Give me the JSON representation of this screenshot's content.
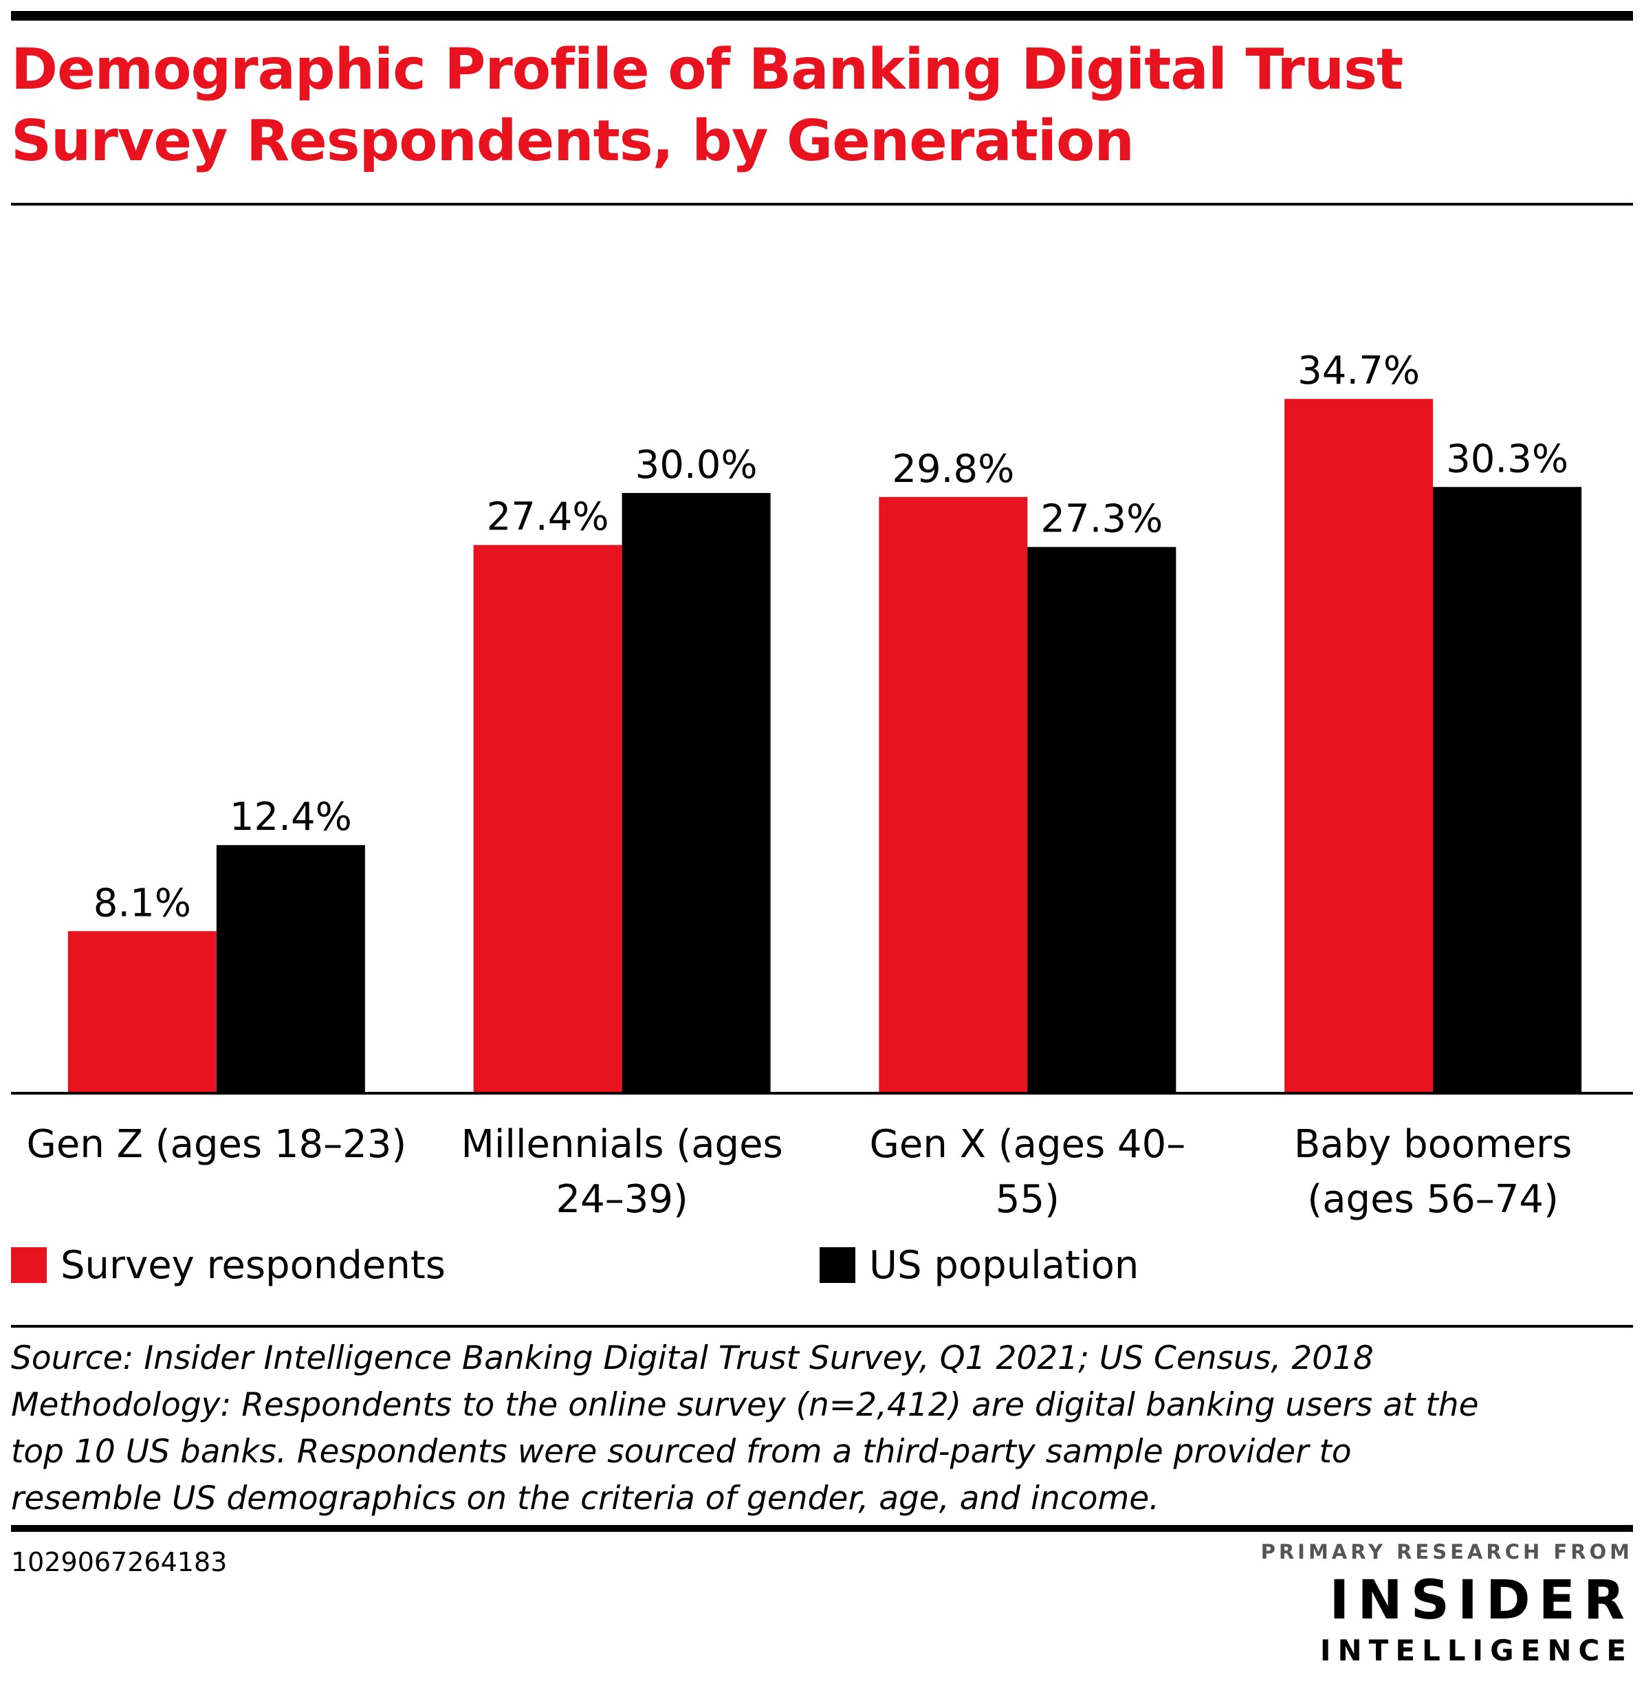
{
  "title_lines": [
    "Demographic Profile of Banking Digital Trust",
    "Survey Respondents, by Generation"
  ],
  "colors": {
    "survey": "#e8131f",
    "us": "#000000",
    "title": "#e8131f"
  },
  "chart_data": {
    "type": "bar",
    "title": "Demographic Profile of Banking Digital Trust Survey Respondents, by Generation",
    "categories": [
      [
        "Gen Z (ages 18–23)"
      ],
      [
        "Millennials (ages",
        "24–39)"
      ],
      [
        "Gen X (ages 40–",
        "55)"
      ],
      [
        "Baby boomers",
        "(ages 56–74)"
      ]
    ],
    "series": [
      {
        "name": "Survey respondents",
        "values": [
          8.1,
          27.4,
          29.8,
          34.7
        ],
        "labels": [
          "8.1%",
          "27.4%",
          "29.8%",
          "34.7%"
        ]
      },
      {
        "name": "US population",
        "values": [
          12.4,
          30.0,
          27.3,
          30.3
        ],
        "labels": [
          "12.4%",
          "30.0%",
          "27.3%",
          "30.3%"
        ]
      }
    ],
    "ylim": [
      0,
      40
    ],
    "grid": false,
    "legend_position": "bottom"
  },
  "legend": {
    "survey": "Survey respondents",
    "us": "US population"
  },
  "source_lines": [
    "Source: Insider Intelligence Banking Digital Trust Survey, Q1 2021; US Census, 2018",
    "Methodology: Respondents to the online survey (n=2,412) are digital banking users at the",
    "top 10 US banks. Respondents were sourced from a third-party sample provider to",
    "resemble US demographics on the criteria of gender, age, and income."
  ],
  "chart_id": "1029067264183",
  "brand": {
    "tag": "PRIMARY RESEARCH FROM",
    "name": "INSIDER",
    "sub": "INTELLIGENCE"
  }
}
